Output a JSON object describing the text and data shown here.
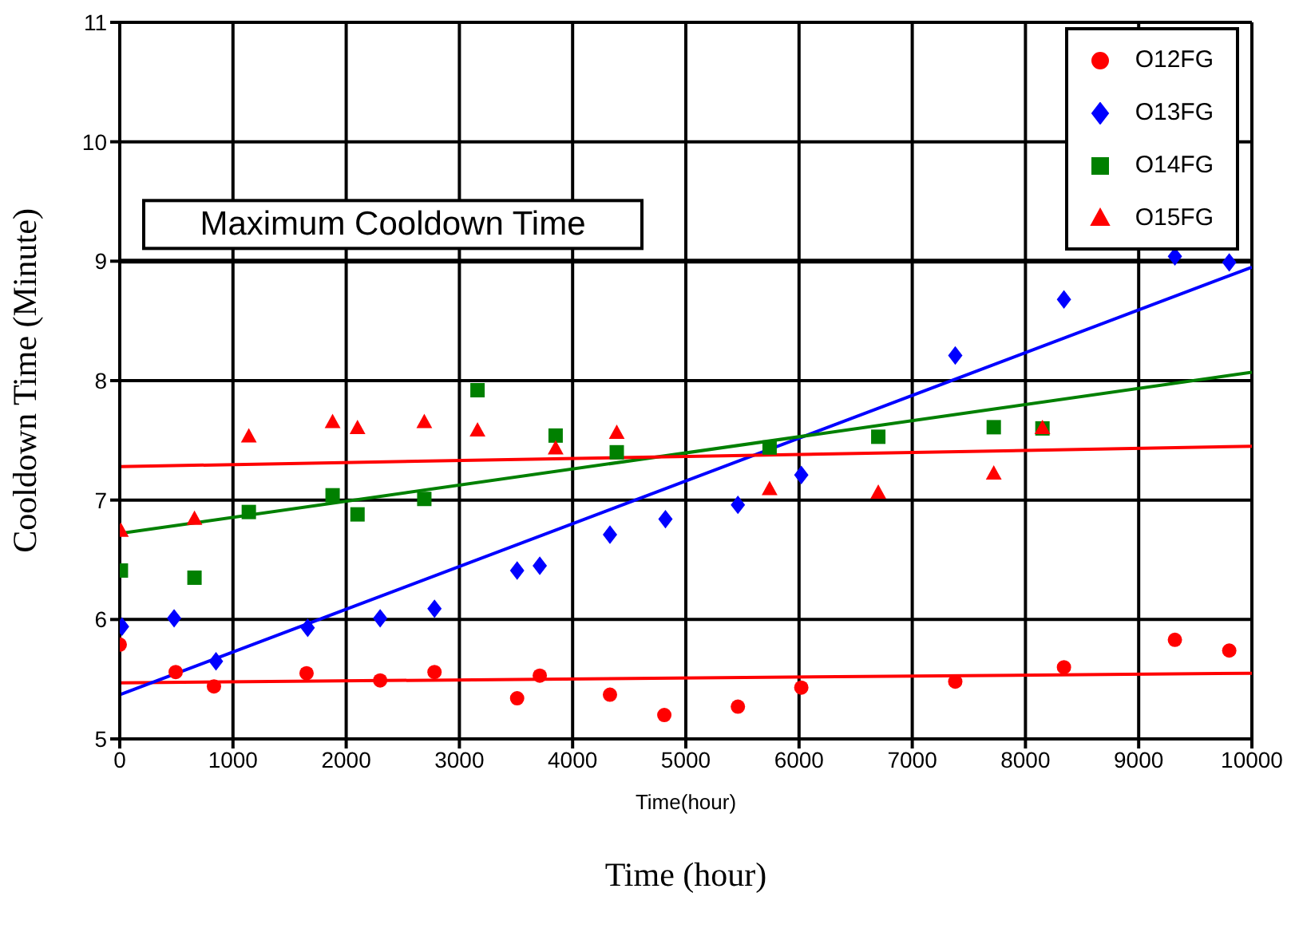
{
  "chart_data": {
    "type": "scatter",
    "xlabel": "Time(hour)",
    "ylabel": "Cooldown Time (Minute)",
    "annotations": [
      "Time (hour)"
    ],
    "xlim": [
      0,
      10000
    ],
    "xticks": [
      0,
      1000,
      2000,
      3000,
      4000,
      5000,
      6000,
      7000,
      8000,
      9000,
      10000
    ],
    "ylim": [
      5,
      11
    ],
    "yticks": [
      5,
      6,
      7,
      8,
      9,
      10,
      11
    ],
    "grid": true,
    "legend": "top right",
    "ref_lines": [
      {
        "axis": "y",
        "value": 9,
        "label": "Maximum Cooldown Time",
        "color": "#000000"
      }
    ],
    "series": [
      {
        "name": "O12FG",
        "marker": "circle",
        "color": "#ff0000",
        "x": [
          0,
          494,
          832,
          1650,
          2300,
          2780,
          3510,
          3710,
          4330,
          4810,
          5460,
          6020,
          7380,
          8340,
          9320,
          9800
        ],
        "values": [
          5.79,
          5.56,
          5.44,
          5.55,
          5.49,
          5.56,
          5.34,
          5.53,
          5.37,
          5.2,
          5.27,
          5.43,
          5.48,
          5.6,
          5.83,
          5.74
        ]
      },
      {
        "name": "O13FG",
        "marker": "diamond",
        "color": "#0000ff",
        "x": [
          20,
          480,
          850,
          1660,
          2300,
          2780,
          3510,
          3710,
          4330,
          4820,
          5460,
          6020,
          7380,
          8340,
          9320,
          9800
        ],
        "values": [
          5.94,
          6.01,
          5.65,
          5.93,
          6.01,
          6.09,
          6.41,
          6.45,
          6.71,
          6.84,
          6.96,
          7.21,
          8.21,
          8.68,
          9.04,
          8.99
        ]
      },
      {
        "name": "O14FG",
        "marker": "square",
        "color": "#008000",
        "x": [
          10,
          660,
          1140,
          1880,
          2100,
          2690,
          3160,
          3850,
          4390,
          5740,
          6700,
          7720,
          8150
        ],
        "values": [
          6.41,
          6.35,
          6.9,
          7.04,
          6.88,
          7.01,
          7.92,
          7.54,
          7.4,
          7.44,
          7.53,
          7.61,
          7.6
        ]
      },
      {
        "name": "O15FG",
        "marker": "triangle",
        "color": "#ff0000",
        "x": [
          10,
          660,
          1140,
          1880,
          2100,
          2690,
          3160,
          3850,
          4390,
          5740,
          6700,
          7720,
          8150
        ],
        "values": [
          6.74,
          6.84,
          7.53,
          7.65,
          7.6,
          7.65,
          7.58,
          7.43,
          7.56,
          7.09,
          7.06,
          7.22,
          7.6
        ]
      },
      {
        "type": "line",
        "color": "#ff0000",
        "x": [
          0,
          10000
        ],
        "values": [
          5.47,
          5.55
        ]
      },
      {
        "type": "line",
        "color": "#0000ff",
        "x": [
          0,
          10000
        ],
        "values": [
          5.37,
          8.95
        ]
      },
      {
        "type": "line",
        "color": "#008000",
        "x": [
          0,
          10000
        ],
        "values": [
          6.72,
          8.07
        ]
      },
      {
        "type": "line",
        "color": "#ff0000",
        "x": [
          0,
          10000
        ],
        "values": [
          7.28,
          7.45
        ]
      }
    ]
  }
}
